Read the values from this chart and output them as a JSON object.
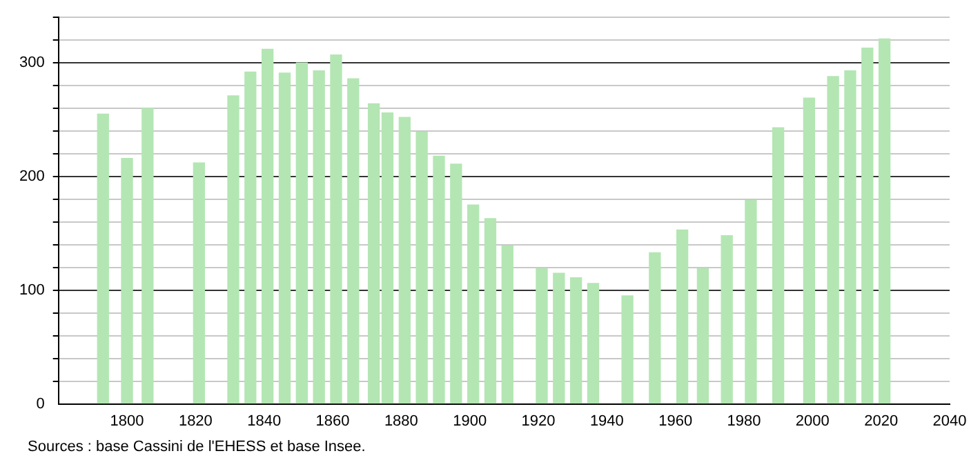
{
  "chart_data": {
    "type": "bar",
    "x": [
      1793,
      1800,
      1806,
      1821,
      1831,
      1836,
      1841,
      1846,
      1851,
      1856,
      1861,
      1866,
      1872,
      1876,
      1881,
      1886,
      1891,
      1896,
      1901,
      1906,
      1911,
      1921,
      1926,
      1931,
      1936,
      1946,
      1954,
      1962,
      1968,
      1975,
      1982,
      1990,
      1999,
      2006,
      2011,
      2016,
      2021
    ],
    "values": [
      255,
      216,
      260,
      212,
      271,
      292,
      312,
      291,
      300,
      293,
      307,
      286,
      264,
      256,
      252,
      239,
      218,
      211,
      175,
      163,
      139,
      119,
      115,
      111,
      106,
      95,
      133,
      153,
      119,
      148,
      179,
      243,
      269,
      288,
      293,
      313,
      321
    ],
    "color": "#b3e6b3",
    "xlim": [
      1780,
      2040
    ],
    "xticks": [
      1800,
      1820,
      1840,
      1860,
      1880,
      1900,
      1920,
      1940,
      1960,
      1980,
      2000,
      2020,
      2040
    ],
    "ylim": [
      0,
      340
    ],
    "yticks": [
      0,
      {
        "value": 20,
        "label": null
      },
      {
        "value": 40,
        "label": null
      },
      {
        "value": 60,
        "label": null
      },
      {
        "value": 80,
        "label": null
      },
      100,
      {
        "value": 120,
        "label": null
      },
      {
        "value": 140,
        "label": null
      },
      {
        "value": 160,
        "label": null
      },
      {
        "value": 180,
        "label": null
      },
      200,
      {
        "value": 220,
        "label": null
      },
      {
        "value": 240,
        "label": null
      },
      {
        "value": 260,
        "label": null
      },
      {
        "value": 280,
        "label": null
      },
      300,
      {
        "value": 320,
        "label": null
      },
      {
        "value": 340,
        "label": null
      }
    ],
    "grid": "y",
    "annotations": [
      "Sources : base Cassini de l'EHESS et base Insee."
    ]
  }
}
